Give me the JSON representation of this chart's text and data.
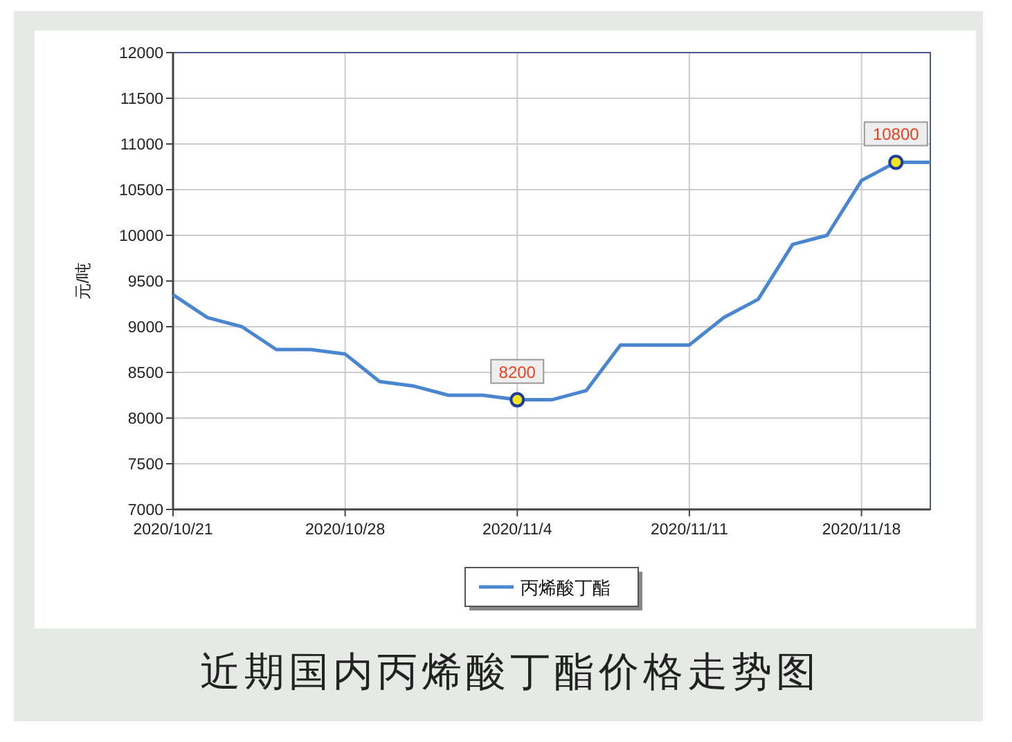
{
  "chart_data": {
    "type": "line",
    "title": "近期国内丙烯酸丁酯价格走势图",
    "ylabel": "元/吨",
    "categories": [
      "2020/10/21",
      null,
      null,
      null,
      null,
      "2020/10/28",
      null,
      null,
      null,
      null,
      "2020/11/4",
      null,
      null,
      null,
      null,
      "2020/11/11",
      null,
      null,
      null,
      null,
      "2020/11/18",
      null,
      null
    ],
    "series": [
      {
        "name": "丙烯酸丁酯",
        "color": "#4a86d0",
        "values": [
          9350,
          9100,
          9000,
          8750,
          8750,
          8700,
          8400,
          8350,
          8250,
          8250,
          8200,
          8200,
          8300,
          8800,
          8800,
          8800,
          9100,
          9300,
          9900,
          10000,
          10600,
          10800,
          10800
        ],
        "value_labels": [
          null,
          null,
          null,
          null,
          null,
          null,
          null,
          null,
          null,
          null,
          "8200",
          null,
          null,
          null,
          null,
          null,
          null,
          null,
          null,
          null,
          null,
          "10800",
          null
        ]
      }
    ],
    "ylim": [
      7000,
      12000
    ],
    "yticks": [
      7000,
      7500,
      8000,
      8500,
      9000,
      9500,
      10000,
      10500,
      11000,
      11500,
      12000
    ],
    "grid": true,
    "legend": "bottom"
  }
}
